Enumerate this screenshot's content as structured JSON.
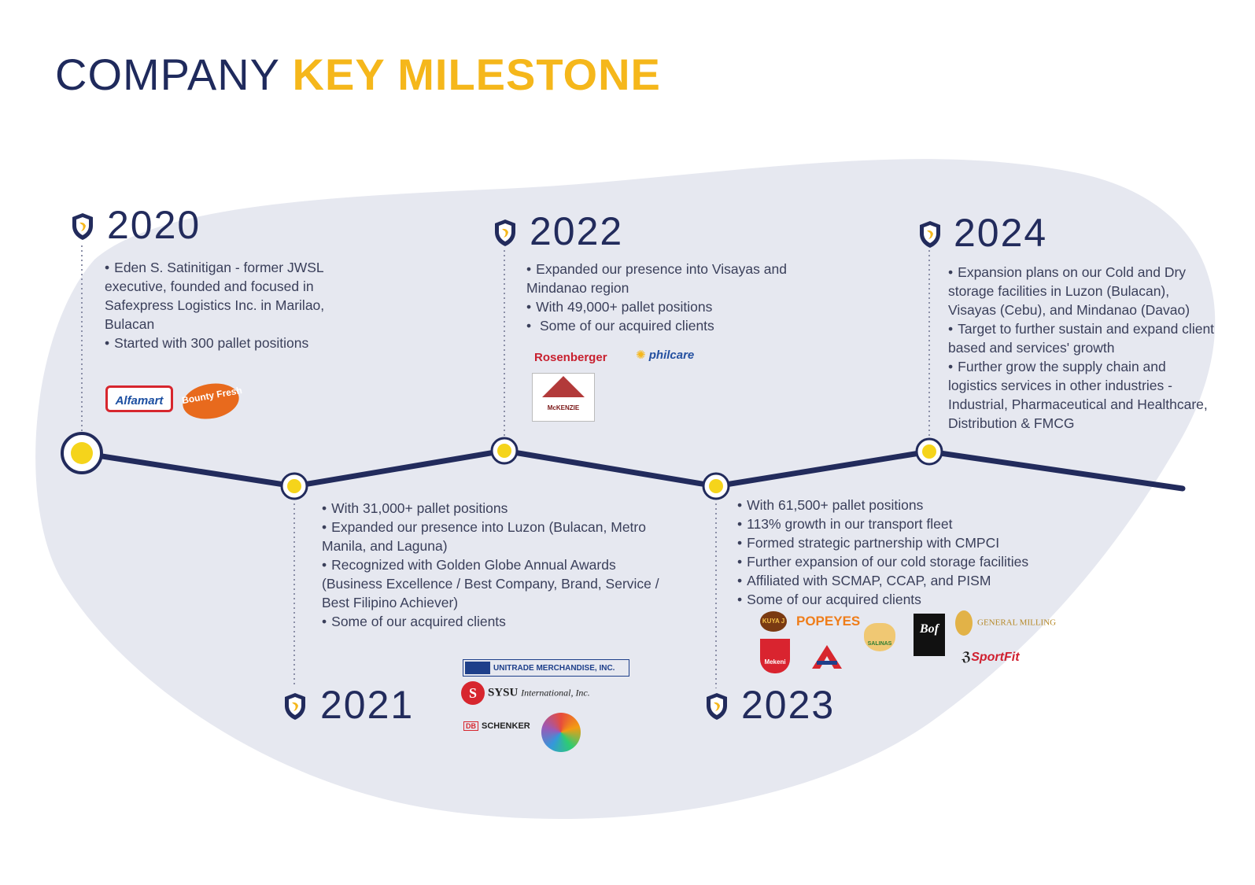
{
  "title": {
    "part1": "COMPANY ",
    "part2": "KEY MILESTONE"
  },
  "colors": {
    "navy": "#222b5c",
    "yellow": "#f5b71b",
    "blob": "#e6e8f0"
  },
  "milestones": [
    {
      "year": "2020",
      "bullets": [
        "Eden S. Satinitigan - former JWSL executive, founded and focused in Safexpress Logistics Inc. in Marilao, Bulacan",
        "Started with 300 pallet positions"
      ]
    },
    {
      "year": "2021",
      "bullets": [
        "With 31,000+ pallet positions",
        "Expanded our presence into Luzon (Bulacan, Metro Manila, and Laguna)",
        "Recognized with Golden Globe Annual Awards (Business Excellence / Best Company, Brand, Service /  Best Filipino Achiever)",
        "Some of our acquired clients"
      ]
    },
    {
      "year": "2022",
      "bullets": [
        "Expanded our presence into Visayas and Mindanao region",
        "With 49,000+ pallet positions",
        " Some of our acquired clients"
      ]
    },
    {
      "year": "2023",
      "bullets": [
        "With 61,500+ pallet positions",
        "113% growth in our transport fleet",
        "Formed strategic partnership with CMPCI",
        "Further expansion of our cold storage facilities",
        "Affiliated with SCMAP, CCAP, and PISM",
        "Some of our acquired clients"
      ]
    },
    {
      "year": "2024",
      "bullets": [
        "Expansion plans on our Cold and Dry storage facilities in Luzon (Bulacan), Visayas (Cebu), and Mindanao (Davao)",
        "Target to further sustain and expand client based and services' growth",
        "Further grow the supply chain and logistics services in other industries - Industrial, Pharmaceutical and Healthcare, Distribution & FMCG"
      ]
    }
  ],
  "logos": {
    "alfamart": "Alfamart",
    "bounty": "Bounty Fresh",
    "rosenberger": "Rosenberger",
    "philcare": "philcare",
    "mckenzie": "McKENZIE",
    "unitrade": "UNITRADE MERCHANDISE, INC.",
    "sysu": "SYSU",
    "sysu_rest": "International, Inc.",
    "db": "DB",
    "schenker": "SCHENKER",
    "kuya": "KUYA J",
    "popeyes": "POPEYES",
    "salinas": "SALINAS",
    "bof": "Bof",
    "general": "GENERAL MILLING",
    "mekeni": "Mekeni",
    "sportfit": "SportFit"
  }
}
